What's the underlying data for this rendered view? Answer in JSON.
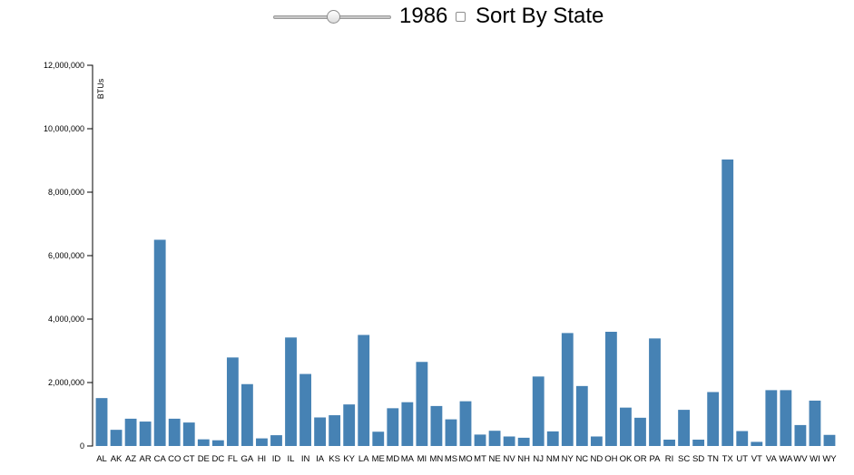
{
  "controls": {
    "year_slider": {
      "min": 1960,
      "max": 2011,
      "value": 1986
    },
    "year_label": "1986",
    "sort_checked": false,
    "sort_label": "Sort By State"
  },
  "chart_data": {
    "type": "bar",
    "ylabel": "BTUs",
    "xlabel": "",
    "ylim": [
      0,
      12000000
    ],
    "yticks": [
      0,
      2000000,
      4000000,
      6000000,
      8000000,
      10000000,
      12000000
    ],
    "ytick_labels": [
      "0",
      "2,000,000",
      "4,000,000",
      "6,000,000",
      "8,000,000",
      "10,000,000",
      "12,000,000"
    ],
    "grid": false,
    "bar_color": "#4682b4",
    "categories": [
      "AL",
      "AK",
      "AZ",
      "AR",
      "CA",
      "CO",
      "CT",
      "DE",
      "DC",
      "FL",
      "GA",
      "HI",
      "ID",
      "IL",
      "IN",
      "IA",
      "KS",
      "KY",
      "LA",
      "ME",
      "MD",
      "MA",
      "MI",
      "MN",
      "MS",
      "MO",
      "MT",
      "NE",
      "NV",
      "NH",
      "NJ",
      "NM",
      "NY",
      "NC",
      "ND",
      "OH",
      "OK",
      "OR",
      "PA",
      "RI",
      "SC",
      "SD",
      "TN",
      "TX",
      "UT",
      "VT",
      "VA",
      "WA",
      "WV",
      "WI",
      "WY"
    ],
    "values": [
      1510000,
      510000,
      860000,
      770000,
      6500000,
      860000,
      740000,
      210000,
      180000,
      2790000,
      1950000,
      240000,
      340000,
      3420000,
      2270000,
      900000,
      970000,
      1310000,
      3500000,
      450000,
      1190000,
      1380000,
      2650000,
      1260000,
      840000,
      1410000,
      360000,
      480000,
      300000,
      260000,
      2190000,
      460000,
      3560000,
      1890000,
      300000,
      3600000,
      1210000,
      890000,
      3390000,
      200000,
      1140000,
      200000,
      1700000,
      9030000,
      470000,
      130000,
      1760000,
      1760000,
      660000,
      1430000,
      350000
    ]
  }
}
